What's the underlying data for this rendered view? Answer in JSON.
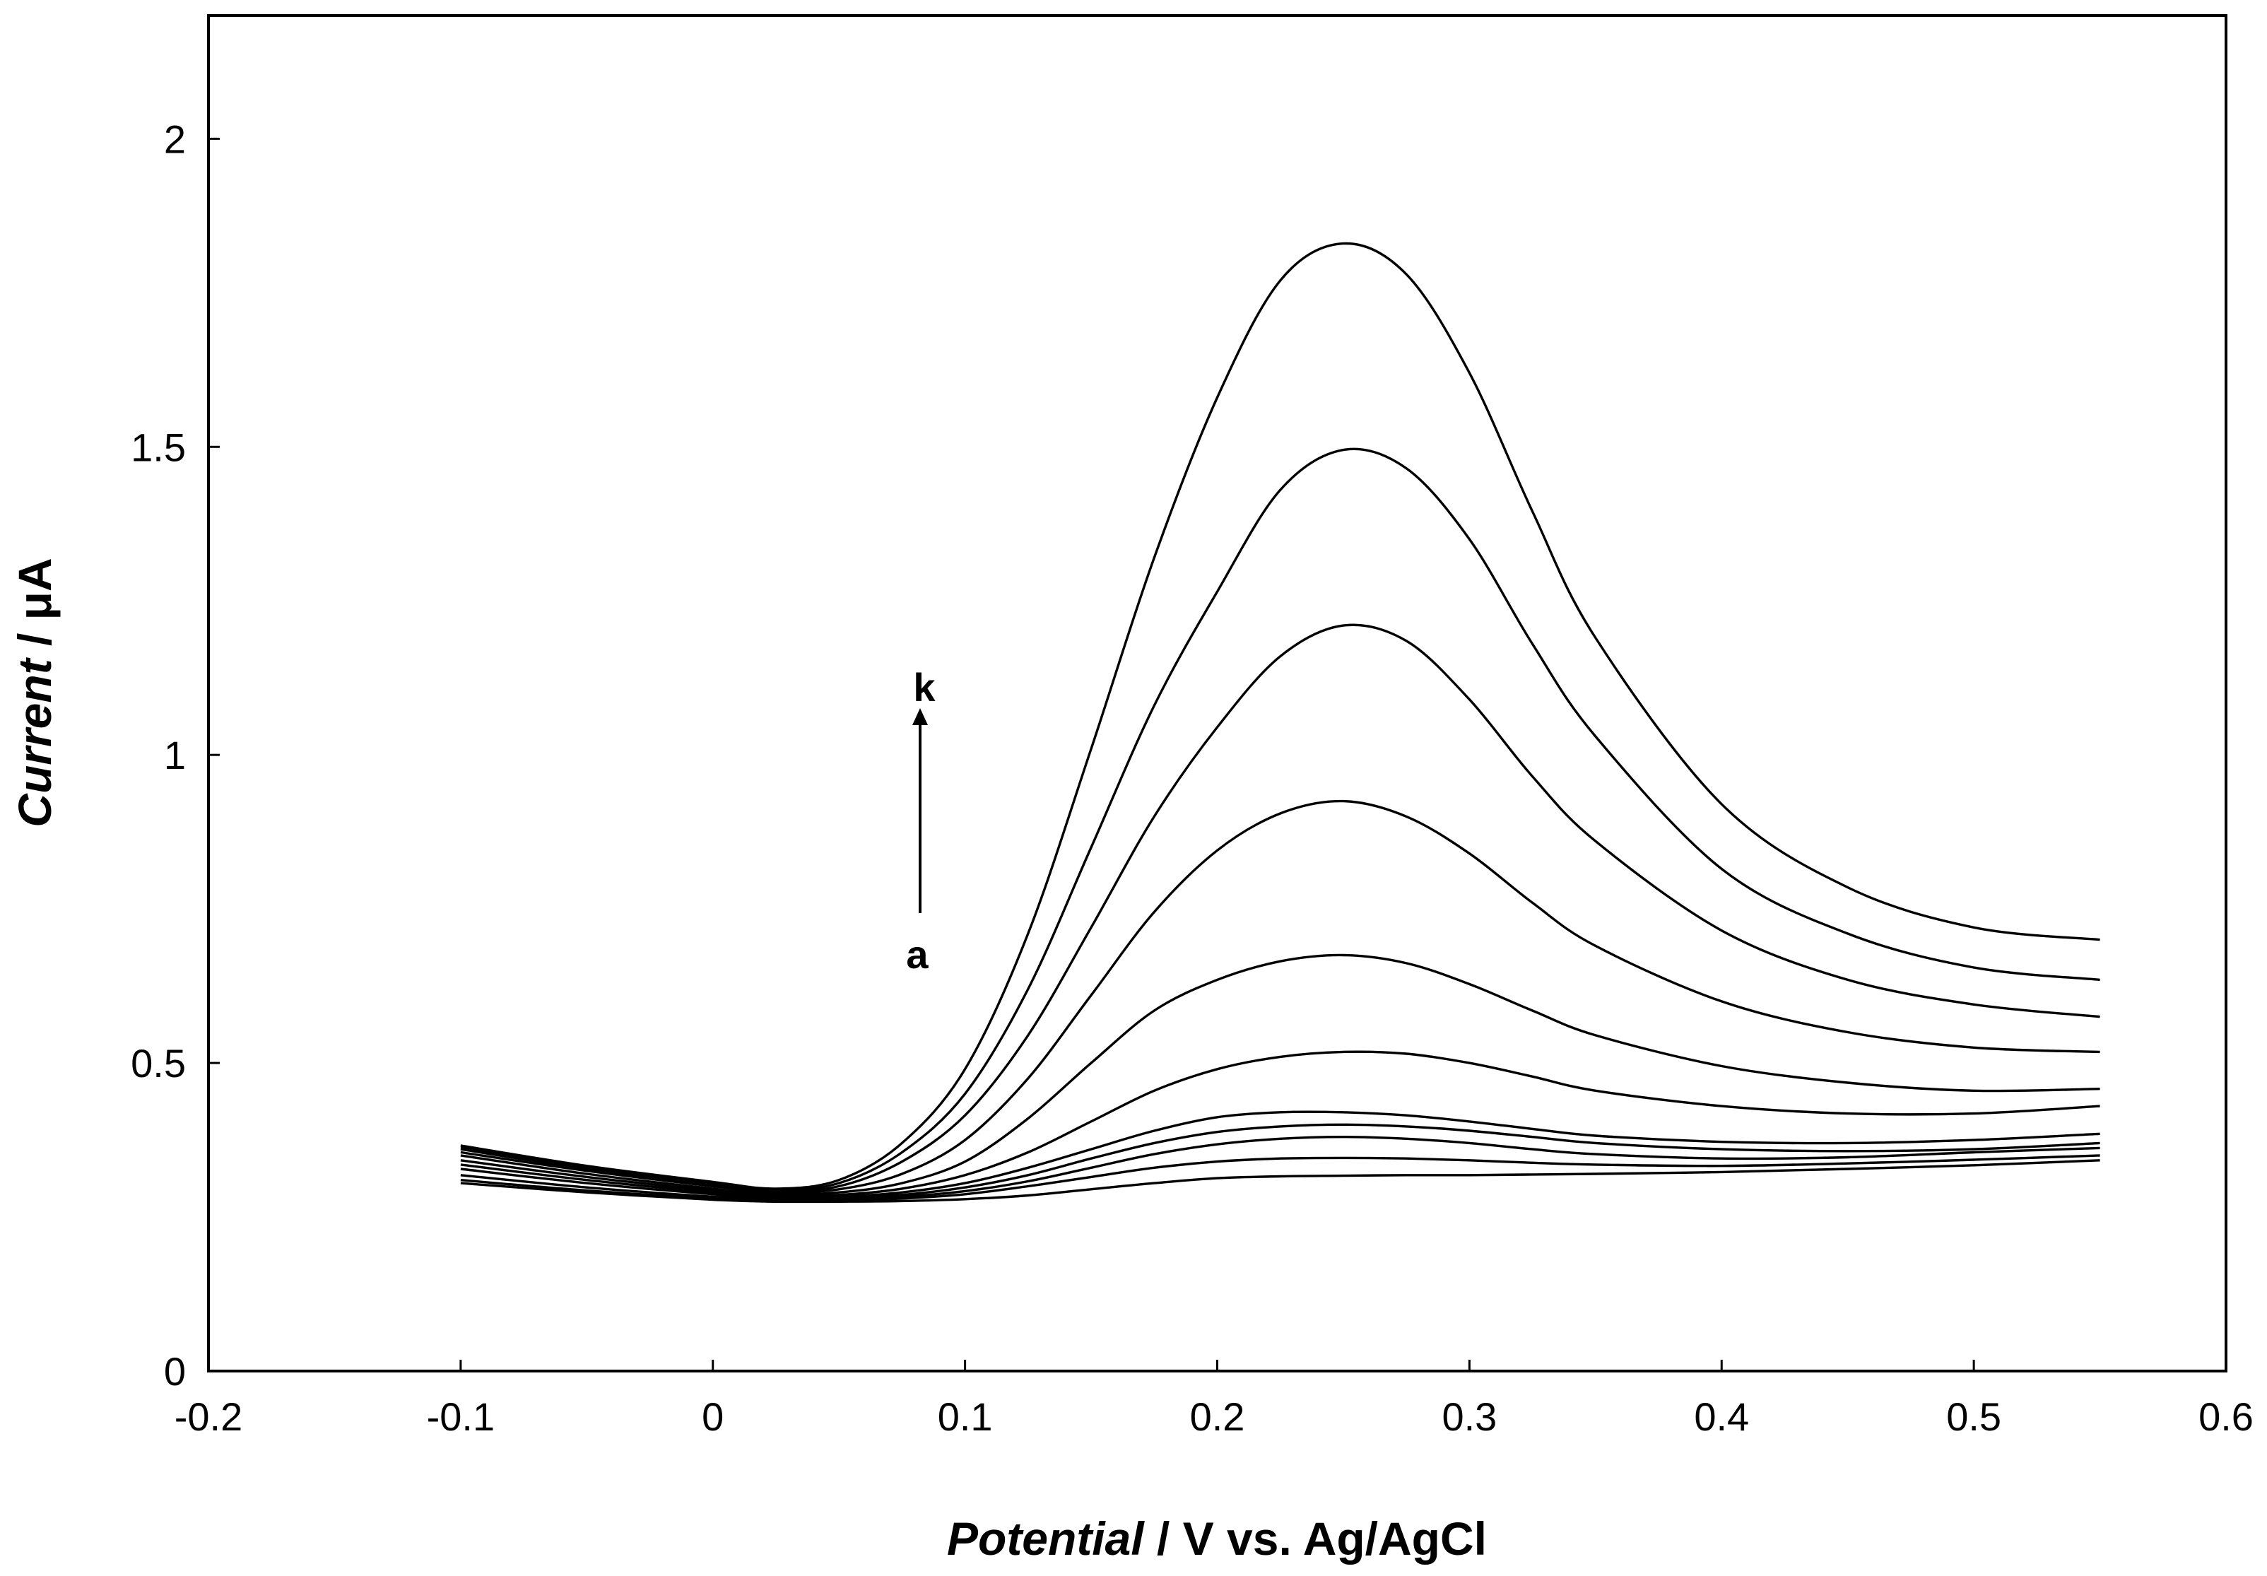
{
  "chart_data": {
    "type": "line",
    "title": "",
    "xlabel": {
      "italic": "Potential",
      "rest": " / V  vs. Ag/AgCl"
    },
    "ylabel": {
      "italic": "Current",
      "rest": " / μA"
    },
    "xlim": [
      -0.2,
      0.6
    ],
    "ylim": [
      0,
      2.2
    ],
    "xticks": [
      -0.2,
      -0.1,
      0,
      0.1,
      0.2,
      0.3,
      0.4,
      0.5,
      0.6
    ],
    "xtick_labels": [
      "-0.2",
      "-0.1",
      "0",
      "0.1",
      "0.2",
      "0.3",
      "0.4",
      "0.5",
      "0.6"
    ],
    "yticks": [
      0,
      0.5,
      1,
      1.5,
      2
    ],
    "ytick_labels": [
      "0",
      "0.5",
      "1",
      "1.5",
      "2"
    ],
    "grid": false,
    "legend": "none",
    "x": [
      -0.1,
      -0.05,
      0,
      0.025,
      0.05,
      0.075,
      0.1,
      0.125,
      0.15,
      0.175,
      0.2,
      0.225,
      0.25,
      0.275,
      0.3,
      0.325,
      0.35,
      0.4,
      0.45,
      0.5,
      0.55
    ],
    "series": [
      {
        "values": [
          0.305,
          0.29,
          0.278,
          0.275,
          0.275,
          0.276,
          0.279,
          0.285,
          0.295,
          0.305,
          0.313,
          0.316,
          0.317,
          0.318,
          0.318,
          0.319,
          0.32,
          0.323,
          0.328,
          0.334,
          0.342
        ]
      },
      {
        "values": [
          0.31,
          0.293,
          0.28,
          0.277,
          0.277,
          0.28,
          0.287,
          0.3,
          0.315,
          0.33,
          0.34,
          0.345,
          0.346,
          0.345,
          0.342,
          0.338,
          0.335,
          0.333,
          0.337,
          0.343,
          0.35
        ]
      },
      {
        "values": [
          0.318,
          0.298,
          0.283,
          0.279,
          0.279,
          0.283,
          0.292,
          0.308,
          0.33,
          0.352,
          0.368,
          0.377,
          0.38,
          0.377,
          0.37,
          0.36,
          0.352,
          0.345,
          0.347,
          0.355,
          0.362
        ]
      },
      {
        "values": [
          0.328,
          0.305,
          0.287,
          0.281,
          0.281,
          0.286,
          0.298,
          0.318,
          0.345,
          0.37,
          0.388,
          0.397,
          0.4,
          0.397,
          0.39,
          0.38,
          0.37,
          0.36,
          0.357,
          0.36,
          0.37
        ]
      },
      {
        "values": [
          0.335,
          0.31,
          0.29,
          0.283,
          0.283,
          0.29,
          0.305,
          0.33,
          0.36,
          0.39,
          0.412,
          0.42,
          0.42,
          0.415,
          0.405,
          0.393,
          0.382,
          0.372,
          0.37,
          0.375,
          0.385
        ]
      },
      {
        "values": [
          0.342,
          0.315,
          0.293,
          0.285,
          0.286,
          0.296,
          0.318,
          0.355,
          0.405,
          0.455,
          0.49,
          0.51,
          0.518,
          0.515,
          0.5,
          0.478,
          0.455,
          0.43,
          0.418,
          0.418,
          0.43
        ]
      },
      {
        "values": [
          0.35,
          0.32,
          0.296,
          0.287,
          0.29,
          0.305,
          0.34,
          0.41,
          0.5,
          0.585,
          0.635,
          0.665,
          0.675,
          0.662,
          0.628,
          0.585,
          0.545,
          0.495,
          0.468,
          0.455,
          0.458
        ]
      },
      {
        "values": [
          0.355,
          0.325,
          0.3,
          0.29,
          0.295,
          0.32,
          0.375,
          0.475,
          0.61,
          0.745,
          0.845,
          0.905,
          0.925,
          0.9,
          0.84,
          0.76,
          0.69,
          0.6,
          0.55,
          0.525,
          0.518
        ]
      },
      {
        "values": [
          0.36,
          0.328,
          0.303,
          0.292,
          0.3,
          0.34,
          0.415,
          0.545,
          0.72,
          0.9,
          1.045,
          1.16,
          1.21,
          1.185,
          1.09,
          0.965,
          0.86,
          0.715,
          0.635,
          0.595,
          0.575
        ]
      },
      {
        "values": [
          0.363,
          0.331,
          0.305,
          0.294,
          0.305,
          0.355,
          0.45,
          0.62,
          0.85,
          1.08,
          1.265,
          1.43,
          1.495,
          1.465,
          1.35,
          1.18,
          1.03,
          0.815,
          0.71,
          0.655,
          0.635
        ]
      },
      {
        "values": [
          0.366,
          0.333,
          0.307,
          0.296,
          0.31,
          0.37,
          0.49,
          0.71,
          1.01,
          1.32,
          1.58,
          1.77,
          1.83,
          1.78,
          1.62,
          1.395,
          1.19,
          0.92,
          0.785,
          0.72,
          0.7
        ]
      }
    ],
    "annotations": [
      {
        "text": "k"
      },
      {
        "text": "a"
      }
    ]
  }
}
